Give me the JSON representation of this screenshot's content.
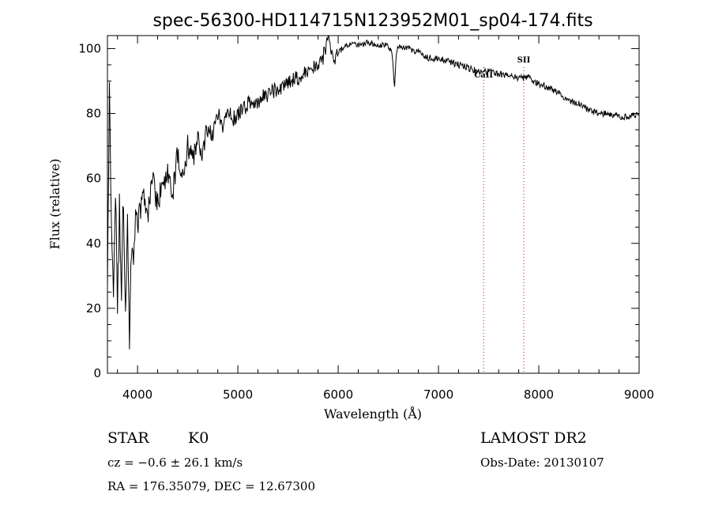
{
  "chart_data": {
    "type": "line",
    "title": "spec-56300-HD114715N123952M01_sp04-174.fits",
    "xlabel": "Wavelength (Å)",
    "ylabel": "Flux (relative)",
    "xlim": [
      3700,
      9000
    ],
    "ylim": [
      0,
      104
    ],
    "x_ticks": [
      4000,
      5000,
      6000,
      7000,
      8000,
      9000
    ],
    "y_ticks": [
      0,
      20,
      40,
      60,
      80,
      100
    ],
    "grid": false,
    "series": [
      {
        "x": [
          3700,
          3720,
          3740,
          3760,
          3780,
          3800,
          3820,
          3840,
          3860,
          3880,
          3900,
          3920,
          3940,
          3960,
          3980,
          4000,
          4050,
          4100,
          4150,
          4200,
          4250,
          4300,
          4350,
          4400,
          4450,
          4500,
          4550,
          4600,
          4650,
          4700,
          4750,
          4800,
          4850,
          4900,
          4950,
          5000,
          5100,
          5200,
          5300,
          5400,
          5500,
          5600,
          5700,
          5800,
          5850,
          5900,
          5950,
          6000,
          6100,
          6200,
          6300,
          6400,
          6500,
          6540,
          6563,
          6580,
          6600,
          6700,
          6800,
          6900,
          7000,
          7100,
          7200,
          7300,
          7400,
          7500,
          7600,
          7700,
          7800,
          7900,
          8000,
          8100,
          8200,
          8300,
          8400,
          8500,
          8600,
          8700,
          8800,
          8900,
          9000
        ],
        "y": [
          30,
          85,
          45,
          25,
          60,
          20,
          50,
          28,
          55,
          15,
          45,
          12,
          40,
          30,
          52,
          45,
          55,
          48,
          60,
          52,
          58,
          62,
          55,
          68,
          60,
          70,
          65,
          72,
          68,
          75,
          73,
          80,
          76,
          82,
          78,
          80,
          83,
          84,
          86,
          88,
          89,
          91,
          93,
          95,
          97,
          104,
          96,
          99,
          101,
          101,
          102,
          101,
          101,
          98,
          88,
          99,
          101,
          100,
          99,
          97,
          97,
          96,
          95,
          94,
          93,
          93,
          92,
          92,
          91,
          91,
          89,
          88,
          86,
          84,
          83,
          81,
          80,
          80,
          79,
          79,
          80
        ]
      }
    ],
    "annotations": [
      {
        "text": "CaII",
        "x": 7450
      },
      {
        "text": "SII",
        "x": 7850
      }
    ]
  },
  "info": {
    "object_class": "STAR",
    "subclass": "K0",
    "survey": "LAMOST DR2",
    "redshift": "cz = −0.6 ± 26.1 km/s",
    "obs_date": "Obs-Date: 20130107",
    "coords": "RA = 176.35079, DEC =  12.67300"
  },
  "colors": {
    "spectrum": "#000000",
    "marker_line": "#cc0000",
    "axis": "#000000"
  }
}
